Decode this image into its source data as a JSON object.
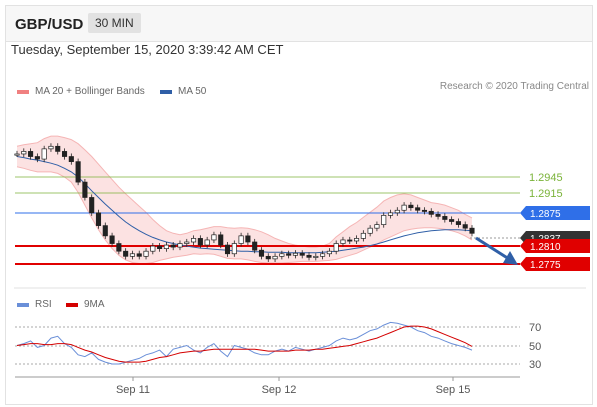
{
  "header": {
    "pair": "GBP/USD",
    "timeframe": "30 MIN"
  },
  "datetime": "Tuesday, September 15, 2020 3:39:42 AM CET",
  "legend_main": [
    {
      "label": "MA 20 + Bollinger Bands",
      "color": "#f08080"
    },
    {
      "label": "MA 50",
      "color": "#2f5fa7"
    }
  ],
  "credit": "Research © 2020 Trading Central",
  "legend_rsi": [
    {
      "label": "RSI",
      "color": "#6a8fd8"
    },
    {
      "label": "9MA",
      "color": "#d40000"
    }
  ],
  "chart_data": [
    {
      "type": "line",
      "title": "GBP/USD 30 MIN",
      "x_labels": [
        "Sep 11",
        "Sep 12",
        "Sep 15"
      ],
      "levels": [
        {
          "value": "1.2945",
          "color": "#7bb33a"
        },
        {
          "value": "1.2915",
          "color": "#7bb33a"
        },
        {
          "value": "1.2875",
          "color": "#2f6fe8"
        },
        {
          "value": "1.2837",
          "color": "#333333"
        },
        {
          "value": "1.2810",
          "color": "#e00000"
        },
        {
          "value": "1.2775",
          "color": "#e00000"
        }
      ],
      "ylim": [
        1.277,
        1.302
      ],
      "close": [
        1.299,
        1.2995,
        1.2985,
        1.298,
        1.3,
        1.3005,
        1.2995,
        1.2985,
        1.2975,
        1.2935,
        1.2905,
        1.2875,
        1.285,
        1.283,
        1.2815,
        1.28,
        1.279,
        1.2795,
        1.279,
        1.28,
        1.281,
        1.2805,
        1.2812,
        1.2808,
        1.2815,
        1.2818,
        1.2825,
        1.2812,
        1.2822,
        1.2832,
        1.2812,
        1.2795,
        1.2815,
        1.283,
        1.2818,
        1.2802,
        1.279,
        1.2785,
        1.279,
        1.2795,
        1.2792,
        1.2796,
        1.2792,
        1.2788,
        1.279,
        1.2795,
        1.28,
        1.2815,
        1.2822,
        1.282,
        1.2825,
        1.2835,
        1.2845,
        1.2852,
        1.287,
        1.2875,
        1.288,
        1.289,
        1.2885,
        1.288,
        1.2878,
        1.2872,
        1.2868,
        1.2862,
        1.2858,
        1.2852,
        1.2845,
        1.2835
      ],
      "ma50": [
        1.2985,
        1.2983,
        1.298,
        1.2978,
        1.2975,
        1.2972,
        1.2968,
        1.2962,
        1.2955,
        1.2945,
        1.2932,
        1.2918,
        1.2905,
        1.2892,
        1.288,
        1.2868,
        1.2857,
        1.2848,
        1.284,
        1.2833,
        1.2827,
        1.2822,
        1.2818,
        1.2815,
        1.2812,
        1.281,
        1.2808,
        1.2806,
        1.2805,
        1.2804,
        1.2803,
        1.2802,
        1.2801,
        1.28,
        1.28,
        1.2799,
        1.2799,
        1.2798,
        1.2798,
        1.2798,
        1.2797,
        1.2797,
        1.2797,
        1.2797,
        1.2797,
        1.2798,
        1.2799,
        1.28,
        1.2802,
        1.2804,
        1.2806,
        1.2808,
        1.2811,
        1.2814,
        1.2818,
        1.2822,
        1.2826,
        1.283,
        1.2833,
        1.2836,
        1.2838,
        1.284,
        1.2841,
        1.2842,
        1.2842,
        1.2842,
        1.2841,
        1.284
      ],
      "bb_upper": [
        1.3005,
        1.3008,
        1.301,
        1.3012,
        1.302,
        1.3025,
        1.3025,
        1.3022,
        1.3018,
        1.301,
        1.2998,
        1.2985,
        1.297,
        1.2955,
        1.294,
        1.2925,
        1.2912,
        1.29,
        1.2888,
        1.2876,
        1.2862,
        1.285,
        1.284,
        1.2835,
        1.2832,
        1.2835,
        1.284,
        1.2842,
        1.2845,
        1.2848,
        1.2848,
        1.2846,
        1.2845,
        1.2846,
        1.2845,
        1.2842,
        1.2838,
        1.2832,
        1.2825,
        1.282,
        1.2815,
        1.2812,
        1.281,
        1.2808,
        1.2808,
        1.281,
        1.2815,
        1.2828,
        1.2838,
        1.2848,
        1.2856,
        1.2866,
        1.2876,
        1.2886,
        1.2898,
        1.2905,
        1.291,
        1.2912,
        1.291,
        1.2905,
        1.29,
        1.2895,
        1.2893,
        1.289,
        1.2885,
        1.288,
        1.2872,
        1.2865
      ],
      "bb_lower": [
        1.2965,
        1.2962,
        1.2958,
        1.2955,
        1.2955,
        1.2955,
        1.2952,
        1.2945,
        1.2935,
        1.2915,
        1.289,
        1.2865,
        1.2842,
        1.2822,
        1.2805,
        1.2792,
        1.2783,
        1.2778,
        1.2776,
        1.2776,
        1.2778,
        1.2782,
        1.2785,
        1.2788,
        1.279,
        1.2792,
        1.2795,
        1.2794,
        1.2795,
        1.2794,
        1.279,
        1.2786,
        1.2785,
        1.2785,
        1.2783,
        1.278,
        1.2778,
        1.2777,
        1.2777,
        1.2777,
        1.2778,
        1.2779,
        1.278,
        1.278,
        1.278,
        1.2781,
        1.2782,
        1.2784,
        1.2788,
        1.2792,
        1.2796,
        1.2802,
        1.2808,
        1.2814,
        1.2822,
        1.2828,
        1.2834,
        1.284,
        1.2843,
        1.2845,
        1.2846,
        1.2846,
        1.2845,
        1.2843,
        1.284,
        1.2836,
        1.283,
        1.2822
      ]
    },
    {
      "type": "line",
      "title": "RSI",
      "yticks": [
        "70",
        "50",
        "30"
      ],
      "ylim": [
        20,
        80
      ],
      "series": [
        {
          "name": "RSI",
          "values": [
            50,
            52,
            55,
            48,
            50,
            58,
            60,
            52,
            48,
            40,
            38,
            42,
            35,
            32,
            30,
            30,
            32,
            34,
            36,
            40,
            42,
            45,
            38,
            46,
            48,
            50,
            45,
            42,
            48,
            52,
            44,
            38,
            50,
            48,
            46,
            42,
            40,
            40,
            44,
            46,
            44,
            48,
            46,
            44,
            46,
            48,
            50,
            55,
            58,
            56,
            58,
            62,
            66,
            68,
            72,
            75,
            74,
            72,
            70,
            66,
            64,
            60,
            58,
            55,
            52,
            50,
            48,
            45
          ]
        },
        {
          "name": "9MA",
          "values": [
            50,
            51,
            52,
            52,
            51,
            51,
            52,
            52,
            51,
            48,
            45,
            43,
            40,
            37,
            35,
            33,
            32,
            32,
            32,
            33,
            35,
            37,
            38,
            40,
            42,
            43,
            44,
            44,
            45,
            46,
            46,
            46,
            46,
            46,
            46,
            46,
            45,
            44,
            44,
            44,
            44,
            45,
            45,
            45,
            46,
            46,
            47,
            48,
            49,
            50,
            52,
            54,
            56,
            58,
            61,
            64,
            67,
            70,
            71,
            71,
            70,
            68,
            65,
            62,
            59,
            56,
            53,
            49
          ]
        }
      ]
    }
  ]
}
